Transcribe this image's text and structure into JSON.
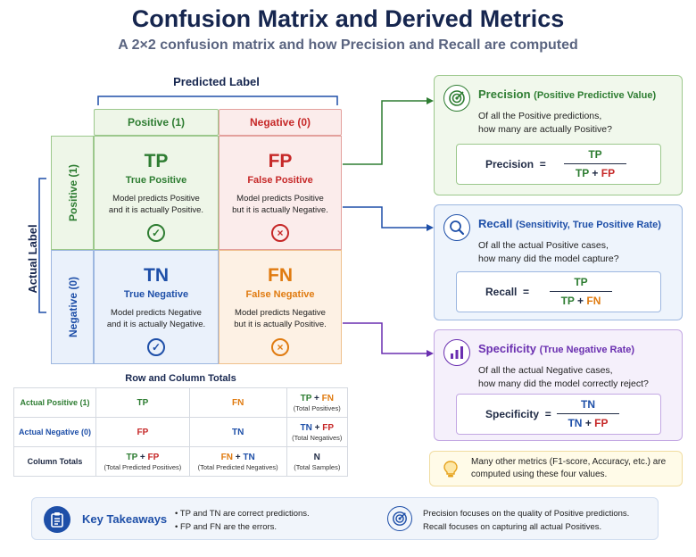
{
  "header": {
    "title": "Confusion Matrix and Derived Metrics",
    "subtitle": "A 2×2 confusion matrix and how Precision and Recall are computed"
  },
  "matrix": {
    "predicted_label": "Predicted Label",
    "actual_label": "Actual Label",
    "columns": [
      "Positive (1)",
      "Negative (0)"
    ],
    "rows": [
      "Positive (1)",
      "Negative (0)"
    ],
    "cells": {
      "tp": {
        "abbr": "TP",
        "name": "True Positive",
        "desc1": "Model predicts Positive",
        "desc2": "and it is actually Positive."
      },
      "fp": {
        "abbr": "FP",
        "name": "False Positive",
        "desc1": "Model predicts Positive",
        "desc2": "but it is actually Negative."
      },
      "tn": {
        "abbr": "TN",
        "name": "True Negative",
        "desc1": "Model predicts Negative",
        "desc2": "and it is actually Negative."
      },
      "fn": {
        "abbr": "FN",
        "name": "False Negative",
        "desc1": "Model predicts Negative",
        "desc2": "but it is actually Positive."
      }
    },
    "marks": {
      "correct": "✓",
      "error": "×"
    }
  },
  "totals": {
    "title": "Row and Column Totals",
    "actual_positive": "Actual Positive (1)",
    "actual_negative": "Actual Negative (0)",
    "column_totals": "Column Totals",
    "tp": "TP",
    "fn": "FN",
    "fp": "FP",
    "tn": "TN",
    "plus": "+",
    "n": "N",
    "total_positives": "(Total Positives)",
    "total_negatives": "(Total Negatives)",
    "total_pred_positives": "(Total Predicted Positives)",
    "total_pred_negatives": "(Total Predicted Negatives)",
    "total_samples": "(Total Samples)"
  },
  "metrics": {
    "precision": {
      "title": "Precision",
      "paren": "(Positive Predictive Value)",
      "q1": "Of all the Positive predictions,",
      "q2": "how many are actually Positive?",
      "label": "Precision",
      "num": "TP",
      "den_a": "TP",
      "den_b": "FP"
    },
    "recall": {
      "title": "Recall",
      "paren": "(Sensitivity, True Positive Rate)",
      "q1": "Of all the actual Positive cases,",
      "q2": "how many did the model capture?",
      "label": "Recall",
      "num": "TP",
      "den_a": "TP",
      "den_b": "FN"
    },
    "specificity": {
      "title": "Specificity",
      "paren": "(True Negative Rate)",
      "q1": "Of all the actual Negative cases,",
      "q2": "how many did the model correctly reject?",
      "label": "Specificity",
      "num": "TN",
      "den_a": "TN",
      "den_b": "FP"
    },
    "equals": "=",
    "plus": "+"
  },
  "note": {
    "line1": "Many other metrics (F1-score, Accuracy, etc.) are",
    "line2": "computed using these four values."
  },
  "takeaways": {
    "title": "Key Takeaways",
    "items": [
      "TP and TN are correct predictions.",
      "FP and FN are the errors."
    ],
    "right1": "Precision focuses on the quality of Positive predictions.",
    "right2": "Recall focuses on capturing all actual Positives."
  },
  "colors": {
    "green": "#2e7d32",
    "red": "#c62828",
    "blue": "#1e4fa8",
    "orange": "#e07b10",
    "purple": "#6a2fb0",
    "navy": "#16264f"
  },
  "icons": {
    "precision": "target-icon",
    "recall": "magnifier-icon",
    "specificity": "bar-chart-icon",
    "note": "lightbulb-icon",
    "takeaways": "clipboard-icon",
    "takeaways_right": "target-icon"
  }
}
